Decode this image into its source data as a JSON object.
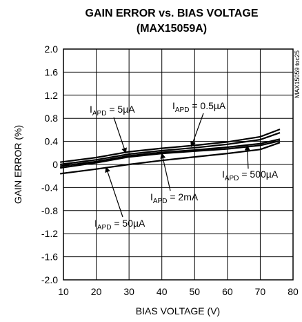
{
  "chart_data": {
    "type": "line",
    "title": "GAIN ERROR vs. BIAS VOLTAGE",
    "subtitle": "(MAX15059A)",
    "xlabel": "BIAS VOLTAGE (V)",
    "ylabel": "GAIN ERROR (%)",
    "xlim": [
      10,
      80
    ],
    "ylim": [
      -2.0,
      2.0
    ],
    "x_ticks": [
      "10",
      "20",
      "30",
      "40",
      "50",
      "60",
      "70",
      "80"
    ],
    "y_ticks": [
      "2.0",
      "1.6",
      "1.2",
      "0.8",
      "0.4",
      "0",
      "-0.4",
      "-0.8",
      "-1.2",
      "-1.6",
      "-2.0"
    ],
    "grid": true,
    "figure_code": "MAX15059 toc25",
    "series": [
      {
        "name": "I_APD = 5µA",
        "label_main": "I",
        "label_sub": "APD",
        "label_rest": " = 5µA",
        "x": [
          9,
          20,
          30,
          40,
          50,
          60,
          70,
          76
        ],
        "y": [
          0.04,
          0.12,
          0.22,
          0.28,
          0.33,
          0.39,
          0.48,
          0.61
        ]
      },
      {
        "name": "I_APD = 0.5µA",
        "label_main": "I",
        "label_sub": "APD",
        "label_rest": " = 0.5µA",
        "x": [
          9,
          20,
          30,
          40,
          50,
          60,
          70,
          76
        ],
        "y": [
          0.0,
          0.08,
          0.18,
          0.24,
          0.29,
          0.35,
          0.43,
          0.55
        ]
      },
      {
        "name": "I_APD = 2mA",
        "label_main": "I",
        "label_sub": "APD",
        "label_rest": " = 2mA",
        "x": [
          9,
          20,
          30,
          40,
          50,
          60,
          70,
          76
        ],
        "y": [
          -0.06,
          0.03,
          0.13,
          0.19,
          0.23,
          0.27,
          0.33,
          0.41
        ]
      },
      {
        "name": "I_APD = 50µA",
        "label_main": "I",
        "label_sub": "APD",
        "label_rest": " = 50µA",
        "x": [
          9,
          20,
          30,
          40,
          50,
          60,
          70,
          76
        ],
        "y": [
          -0.16,
          -0.08,
          0.0,
          0.07,
          0.13,
          0.19,
          0.26,
          0.38
        ]
      },
      {
        "name": "I_APD = 500µA",
        "label_main": "I",
        "label_sub": "APD",
        "label_rest": " = 500µA",
        "x": [
          9,
          20,
          30,
          40,
          50,
          60,
          70,
          76
        ],
        "y": [
          -0.03,
          0.05,
          0.15,
          0.21,
          0.25,
          0.3,
          0.36,
          0.44
        ]
      }
    ]
  }
}
